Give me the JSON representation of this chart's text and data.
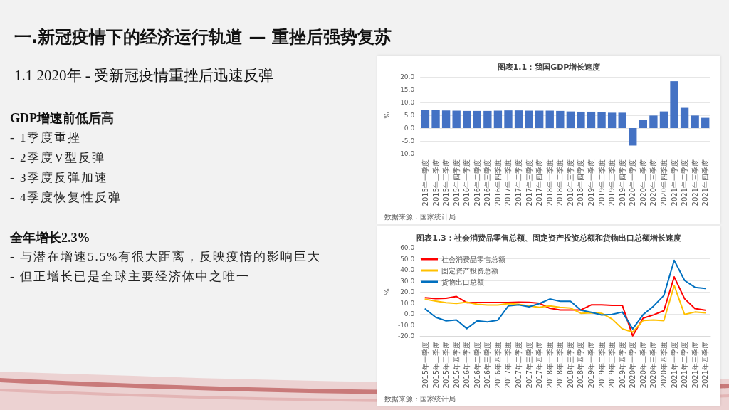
{
  "chart_data": [
    {
      "type": "other",
      "title": "一.新冠疫情下的经济运行轨道 — 重挫后强势复苏",
      "subtitle": "1.1 2020年 - 受新冠疫情重挫后迅速反弹"
    },
    {
      "type": "other",
      "title": "GDP增速前低后高",
      "annotations": [
        "- 1季度重挫",
        "- 2季度V型反弹",
        "- 3季度反弹加速",
        "- 4季度恢复性反弹"
      ]
    },
    {
      "type": "other",
      "title": "全年增长2.3%",
      "annotations": [
        "- 与潜在增速5.5%有很大距离，反映疫情的影响巨大",
        "- 但正增长已是全球主要经济体中之唯一"
      ]
    },
    {
      "type": "bar",
      "title": "图表1.1：我国GDP增长速度",
      "ylabel": "%",
      "annotations": [
        "数据来源：国家统计局"
      ],
      "categories": [
        "2015年一季度",
        "2015年二季度",
        "2015年三季度",
        "2015年四季度",
        "2016年一季度",
        "2016年二季度",
        "2016年三季度",
        "2016年四季度",
        "2017年一季度",
        "2017年二季度",
        "2017年三季度",
        "2017年四季度",
        "2018年一季度",
        "2018年二季度",
        "2018年三季度",
        "2018年四季度",
        "2019年一季度",
        "2019年二季度",
        "2019年三季度",
        "2019年四季度",
        "2020年一季度",
        "2020年二季度",
        "2020年三季度",
        "2020年四季度",
        "2021年一季度",
        "2021年二季度",
        "2021年三季度",
        "2021年四季度"
      ],
      "values": [
        7.0,
        7.0,
        6.9,
        6.8,
        6.7,
        6.7,
        6.7,
        6.8,
        6.9,
        6.9,
        6.8,
        6.8,
        6.8,
        6.7,
        6.5,
        6.4,
        6.4,
        6.2,
        6.0,
        6.0,
        -6.8,
        3.2,
        4.9,
        6.5,
        18.3,
        7.9,
        4.9,
        4.0
      ],
      "color": "#4472c4",
      "ylim": [
        -10,
        20
      ],
      "yticks": [
        {
          "value": -10,
          "label": "-10.0"
        },
        {
          "value": -5,
          "label": "-5.0"
        },
        {
          "value": 0,
          "label": "0.0"
        },
        {
          "value": 5,
          "label": "5.0"
        },
        {
          "value": 10,
          "label": "10.0"
        },
        {
          "value": 15,
          "label": "15.0"
        },
        {
          "value": 20,
          "label": "20.0"
        }
      ],
      "grid": "y"
    },
    {
      "type": "line",
      "title": "图表1.3：社会消费品零售总额、固定资产投资总额和货物出口总额增长速度",
      "ylabel": "%",
      "annotations": [
        "数据来源：国家统计局"
      ],
      "categories": [
        "2015年一季度",
        "2015年二季度",
        "2015年三季度",
        "2015年四季度",
        "2016年一季度",
        "2016年二季度",
        "2016年三季度",
        "2016年四季度",
        "2017年一季度",
        "2017年二季度",
        "2017年三季度",
        "2017年四季度",
        "2018年一季度",
        "2018年二季度",
        "2018年三季度",
        "2018年四季度",
        "2019年一季度",
        "2019年二季度",
        "2019年三季度",
        "2019年四季度",
        "2020年一季度",
        "2020年二季度",
        "2020年三季度",
        "2020年四季度",
        "2021年一季度",
        "2021年二季度",
        "2021年三季度",
        "2021年四季度"
      ],
      "series": [
        {
          "name": "社会消费品零售总额",
          "color": "#ff0000",
          "values": [
            14.6,
            13.9,
            14.2,
            15.8,
            10.2,
            10.3,
            10.3,
            10.3,
            10.3,
            10.7,
            10.5,
            9.7,
            5.1,
            3.6,
            3.6,
            3.6,
            8.2,
            8.2,
            7.7,
            7.7,
            -19.9,
            -3.9,
            -0.9,
            2.9,
            33.5,
            13.8,
            4.8,
            3.4
          ]
        },
        {
          "name": "固定资产投资总额",
          "color": "#ffc000",
          "values": [
            13.3,
            11.6,
            10.2,
            9.5,
            10.6,
            8.7,
            8.0,
            8.0,
            9.4,
            8.7,
            7.3,
            6.0,
            7.3,
            6.0,
            5.3,
            0.5,
            1.0,
            0.5,
            -4.6,
            -13.5,
            -16.5,
            -6.0,
            -5.5,
            -6.1,
            25.7,
            -0.5,
            1.7,
            0.9
          ]
        },
        {
          "name": "货物出口总额",
          "color": "#0070c0",
          "values": [
            4.4,
            -3.1,
            -6.3,
            -5.5,
            -13.3,
            -6.3,
            -7.2,
            -5.6,
            7.2,
            8.2,
            6.5,
            9.4,
            13.5,
            11.4,
            11.4,
            3.4,
            1.4,
            -1.0,
            -0.5,
            1.7,
            -13.6,
            -0.7,
            7.0,
            16.7,
            48.6,
            30.3,
            24.1,
            23.0
          ]
        }
      ],
      "ylim": [
        -20,
        60
      ],
      "yticks": [
        {
          "value": -20,
          "label": "-20.0"
        },
        {
          "value": -10,
          "label": "-10.0"
        },
        {
          "value": 0,
          "label": "0.0"
        },
        {
          "value": 10,
          "label": "10.0"
        },
        {
          "value": 20,
          "label": "20.0"
        },
        {
          "value": 30,
          "label": "30.0"
        },
        {
          "value": 40,
          "label": "40.0"
        },
        {
          "value": 50,
          "label": "50.0"
        },
        {
          "value": 60,
          "label": "60.0"
        }
      ],
      "grid": "y",
      "legend": "top left",
      "marker": "none",
      "line_style": "solid"
    }
  ]
}
